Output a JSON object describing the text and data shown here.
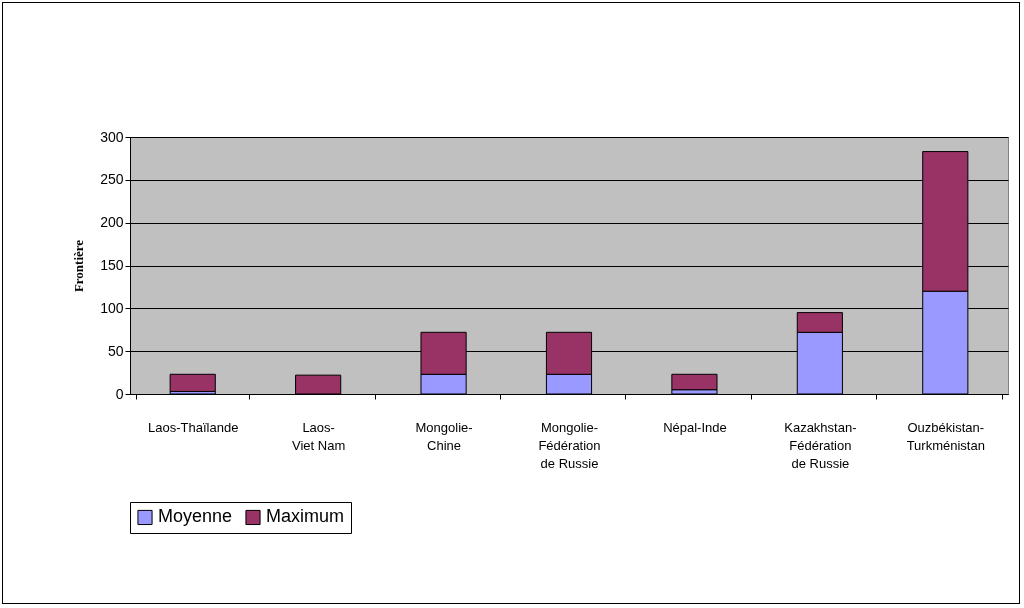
{
  "chart_data": {
    "type": "bar",
    "ylabel": "Frontière",
    "stacked": true,
    "categories": [
      "Laos-Thaïlande",
      "Laos-\n\nViet Nam",
      "Mongolie-\n\nChine",
      "Mongolie-\n\nFédération\nde Russie",
      "Népal-Inde",
      "Kazakhstan-\n\nFédération\nde Russie",
      "Ouzbékistan-\n\nTurkménistan"
    ],
    "series": [
      {
        "name": "Moyenne",
        "color": "#9999ff",
        "values": [
          3,
          null,
          23,
          23,
          5,
          72,
          120
        ]
      },
      {
        "name": "Maximum",
        "color": "#993366",
        "values": [
          20,
          22,
          49,
          49,
          18,
          23,
          163
        ]
      }
    ],
    "ylim": [
      0,
      300
    ],
    "yticks": [
      0,
      50,
      100,
      150,
      200,
      250,
      300
    ],
    "grid": "y",
    "legend": "bottom"
  }
}
